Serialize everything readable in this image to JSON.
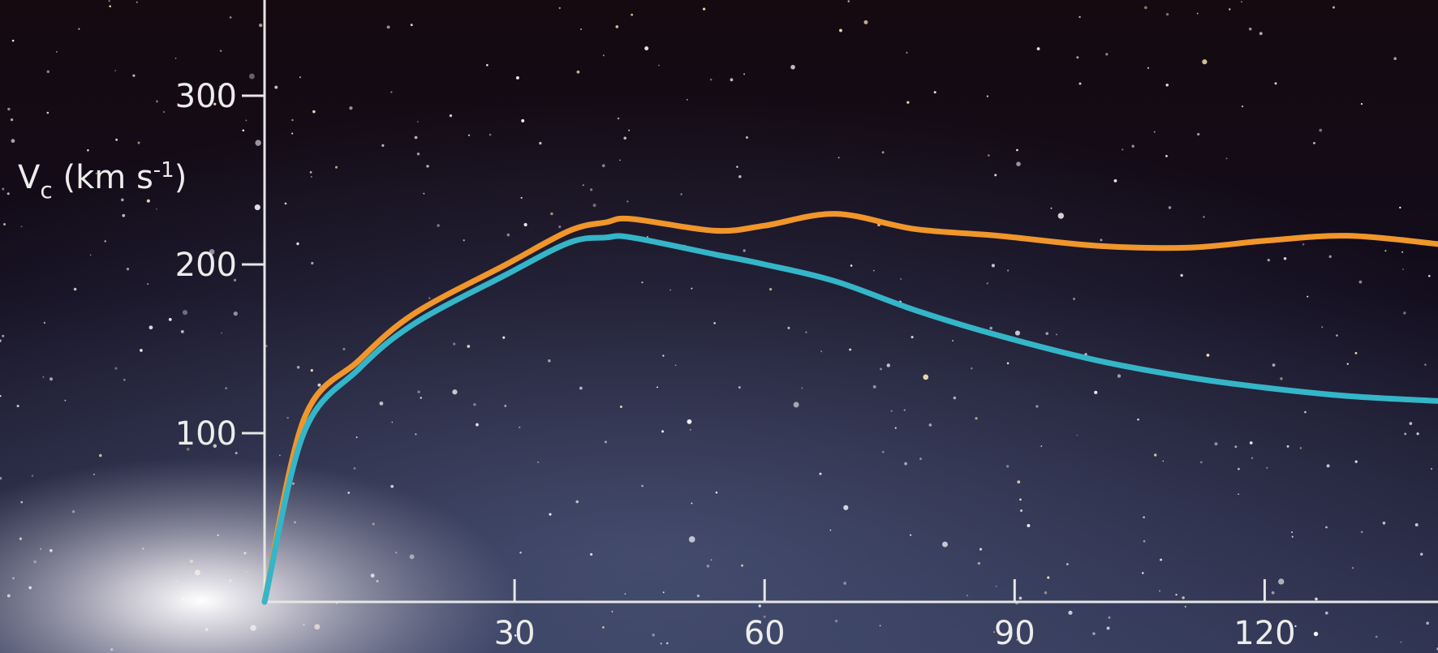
{
  "chart_data": {
    "type": "line",
    "ylabel_parts": [
      "V",
      "c",
      " (km s",
      "-1",
      ")"
    ],
    "x": [
      0,
      4.7,
      11.3,
      18,
      29,
      36.6,
      41,
      44,
      54,
      60,
      68.5,
      78,
      88,
      100,
      111,
      120,
      130,
      141
    ],
    "series": [
      {
        "color": "#f0962a",
        "values": [
          0,
          108,
          143,
          171,
          200,
          220,
          225,
          227,
          220,
          223,
          230,
          221,
          217,
          211,
          210,
          214,
          217,
          212
        ]
      },
      {
        "color": "#35b5c8",
        "values": [
          0,
          100,
          138,
          165,
          194,
          213,
          216,
          216,
          206,
          200,
          190,
          173,
          158,
          143,
          133,
          127,
          122,
          119
        ]
      }
    ],
    "xlim": [
      0,
      141
    ],
    "xticks": [
      30,
      60,
      90,
      120
    ],
    "ylim": [
      0,
      360
    ],
    "yticks": [
      100,
      200,
      300
    ]
  }
}
